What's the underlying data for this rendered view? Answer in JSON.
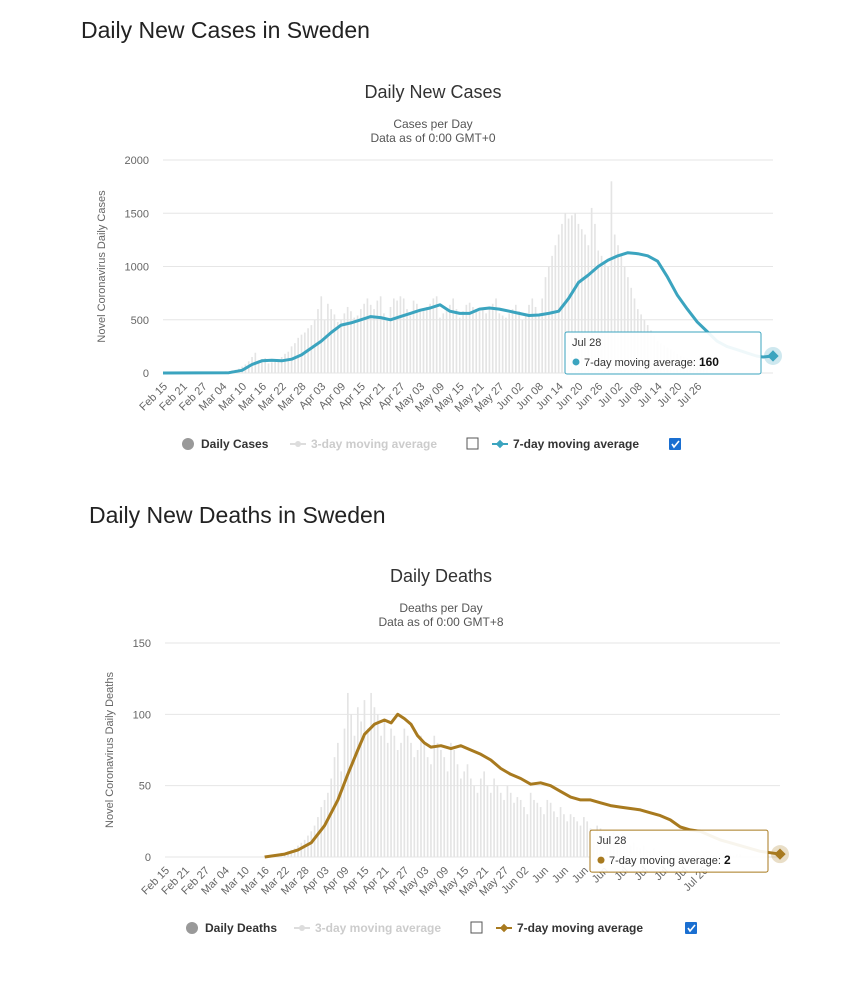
{
  "page": {
    "cases_heading": "Daily New Cases in Sweden",
    "deaths_heading": "Daily New Deaths in Sweden"
  },
  "chart_data": [
    {
      "type": "bar",
      "title": "Daily New Cases",
      "subtitle1": "Cases per Day",
      "subtitle2": "Data as of 0:00 GMT+0",
      "ylabel": "Novel Coronavirus Daily Cases",
      "ylim": [
        0,
        2000
      ],
      "yticks": [
        0,
        500,
        1000,
        1500,
        2000
      ],
      "x_range": [
        "Feb 15",
        "Jul 28"
      ],
      "xticks": [
        "Feb 15",
        "Feb 21",
        "Feb 27",
        "Mar 04",
        "Mar 10",
        "Mar 16",
        "Mar 22",
        "Mar 28",
        "Apr 03",
        "Apr 09",
        "Apr 15",
        "Apr 21",
        "Apr 27",
        "May 03",
        "May 09",
        "May 15",
        "May 21",
        "May 27",
        "Jun 02",
        "Jun 08",
        "Jun 14",
        "Jun 20",
        "Jun 26",
        "Jul 02",
        "Jul 08",
        "Jul 14",
        "Jul 20",
        "Jul 26"
      ],
      "accent": "#3ba4bf",
      "legend": {
        "daily": "Daily Cases",
        "ma3": "3-day moving average",
        "ma7": "7-day moving average",
        "ma3_checked": false,
        "ma7_checked": true
      },
      "tooltip": {
        "date": "Jul 28",
        "label": "7-day moving average:",
        "value": "160"
      },
      "series": [
        {
          "name": "7-day moving average",
          "points": [
            [
              0,
              0
            ],
            [
              10,
              1
            ],
            [
              20,
              3
            ],
            [
              24,
              25
            ],
            [
              27,
              80
            ],
            [
              30,
              115
            ],
            [
              33,
              120
            ],
            [
              36,
              115
            ],
            [
              39,
              130
            ],
            [
              42,
              170
            ],
            [
              45,
              235
            ],
            [
              48,
              300
            ],
            [
              51,
              380
            ],
            [
              54,
              450
            ],
            [
              57,
              470
            ],
            [
              60,
              500
            ],
            [
              63,
              530
            ],
            [
              66,
              520
            ],
            [
              69,
              500
            ],
            [
              72,
              530
            ],
            [
              75,
              560
            ],
            [
              78,
              590
            ],
            [
              81,
              610
            ],
            [
              84,
              640
            ],
            [
              87,
              580
            ],
            [
              90,
              560
            ],
            [
              93,
              560
            ],
            [
              96,
              600
            ],
            [
              99,
              610
            ],
            [
              102,
              600
            ],
            [
              105,
              580
            ],
            [
              108,
              560
            ],
            [
              111,
              540
            ],
            [
              114,
              545
            ],
            [
              117,
              560
            ],
            [
              120,
              580
            ],
            [
              123,
              700
            ],
            [
              126,
              850
            ],
            [
              129,
              920
            ],
            [
              132,
              1000
            ],
            [
              135,
              1060
            ],
            [
              138,
              1100
            ],
            [
              141,
              1130
            ],
            [
              144,
              1120
            ],
            [
              147,
              1100
            ],
            [
              150,
              1050
            ],
            [
              153,
              900
            ],
            [
              156,
              730
            ],
            [
              159,
              600
            ],
            [
              162,
              480
            ],
            [
              165,
              390
            ],
            [
              168,
              300
            ],
            [
              171,
              250
            ],
            [
              174,
              220
            ],
            [
              177,
              190
            ],
            [
              180,
              160
            ],
            [
              182,
              150
            ],
            [
              185,
              160
            ]
          ]
        }
      ],
      "bars_note": "daily values approximated",
      "daily_cases": [
        0,
        0,
        0,
        0,
        0,
        0,
        0,
        0,
        0,
        0,
        0,
        1,
        2,
        3,
        5,
        8,
        10,
        12,
        14,
        16,
        15,
        25,
        30,
        40,
        60,
        80,
        110,
        150,
        190,
        120,
        130,
        140,
        90,
        100,
        110,
        120,
        150,
        180,
        200,
        250,
        280,
        330,
        360,
        380,
        420,
        450,
        500,
        600,
        720,
        500,
        650,
        600,
        550,
        480,
        500,
        560,
        620,
        580,
        520,
        540,
        600,
        650,
        700,
        640,
        600,
        680,
        720,
        560,
        500,
        620,
        700,
        680,
        720,
        700,
        600,
        540,
        680,
        650,
        580,
        600,
        620,
        650,
        700,
        720,
        520,
        560,
        600,
        640,
        700,
        600,
        520,
        580,
        640,
        660,
        620,
        600,
        580,
        600,
        560,
        620,
        650,
        700,
        560,
        540,
        520,
        560,
        600,
        640,
        580,
        500,
        560,
        640,
        700,
        620,
        540,
        700,
        900,
        1000,
        1100,
        1200,
        1300,
        1400,
        1500,
        1450,
        1480,
        1500,
        1400,
        1350,
        1300,
        1200,
        1550,
        1400,
        1150,
        1100,
        1050,
        1000,
        1800,
        1300,
        1200,
        1100,
        1000,
        900,
        800,
        700,
        600,
        550,
        500,
        450,
        400,
        350,
        300,
        280,
        260,
        240,
        220,
        200,
        180,
        160,
        150,
        140,
        130,
        120,
        110,
        160,
        170,
        180
      ]
    },
    {
      "type": "bar",
      "title": "Daily Deaths",
      "subtitle1": "Deaths per Day",
      "subtitle2": "Data as of 0:00 GMT+8",
      "ylabel": "Novel Coronavirus Daily Deaths",
      "ylim": [
        0,
        150
      ],
      "yticks": [
        0,
        50,
        100,
        150
      ],
      "x_range": [
        "Feb 15",
        "Jul 28"
      ],
      "xticks": [
        "Feb 15",
        "Feb 21",
        "Feb 27",
        "Mar 04",
        "Mar 10",
        "Mar 16",
        "Mar 22",
        "Mar 28",
        "Apr 03",
        "Apr 09",
        "Apr 15",
        "Apr 21",
        "Apr 27",
        "May 03",
        "May 09",
        "May 15",
        "May 21",
        "May 27",
        "Jun 02",
        "Jun",
        "Jun",
        "Jun",
        "Jun",
        "Jul",
        "Jul",
        "Jul",
        "Jul",
        "Jul 26"
      ],
      "accent": "#a87a1f",
      "legend": {
        "daily": "Daily Deaths",
        "ma3": "3-day moving average",
        "ma7": "7-day moving average",
        "ma3_checked": false,
        "ma7_checked": true
      },
      "tooltip": {
        "date": "Jul 28",
        "label": "7-day moving average:",
        "value": "2"
      },
      "series": [
        {
          "name": "7-day moving average",
          "points": [
            [
              30,
              0
            ],
            [
              36,
              2
            ],
            [
              40,
              5
            ],
            [
              44,
              10
            ],
            [
              48,
              22
            ],
            [
              52,
              40
            ],
            [
              55,
              58
            ],
            [
              58,
              75
            ],
            [
              60,
              86
            ],
            [
              63,
              93
            ],
            [
              66,
              96
            ],
            [
              68,
              94
            ],
            [
              70,
              100
            ],
            [
              72,
              97
            ],
            [
              74,
              93
            ],
            [
              76,
              85
            ],
            [
              78,
              80
            ],
            [
              80,
              77
            ],
            [
              83,
              78
            ],
            [
              86,
              76
            ],
            [
              89,
              78
            ],
            [
              92,
              75
            ],
            [
              95,
              72
            ],
            [
              98,
              68
            ],
            [
              101,
              62
            ],
            [
              104,
              58
            ],
            [
              107,
              55
            ],
            [
              110,
              51
            ],
            [
              113,
              52
            ],
            [
              116,
              50
            ],
            [
              119,
              46
            ],
            [
              122,
              42
            ],
            [
              125,
              40
            ],
            [
              128,
              40
            ],
            [
              131,
              38
            ],
            [
              134,
              36
            ],
            [
              137,
              35
            ],
            [
              140,
              34
            ],
            [
              143,
              33
            ],
            [
              146,
              31
            ],
            [
              149,
              29
            ],
            [
              152,
              26
            ],
            [
              155,
              21
            ],
            [
              158,
              19
            ],
            [
              161,
              18
            ],
            [
              164,
              15
            ],
            [
              167,
              12
            ],
            [
              170,
              10
            ],
            [
              173,
              8
            ],
            [
              176,
              6
            ],
            [
              179,
              4
            ],
            [
              182,
              3
            ],
            [
              185,
              2
            ]
          ]
        }
      ],
      "daily_deaths": [
        0,
        0,
        0,
        0,
        0,
        0,
        0,
        0,
        0,
        0,
        0,
        0,
        0,
        0,
        0,
        0,
        0,
        0,
        0,
        0,
        0,
        0,
        0,
        0,
        0,
        0,
        0,
        0,
        0,
        0,
        1,
        0,
        1,
        2,
        1,
        3,
        2,
        4,
        5,
        6,
        8,
        10,
        12,
        15,
        18,
        22,
        28,
        35,
        40,
        45,
        55,
        70,
        80,
        60,
        90,
        115,
        100,
        85,
        105,
        95,
        110,
        90,
        115,
        105,
        100,
        85,
        95,
        80,
        90,
        85,
        75,
        80,
        90,
        85,
        80,
        70,
        75,
        85,
        80,
        70,
        65,
        85,
        80,
        75,
        70,
        60,
        80,
        75,
        65,
        55,
        60,
        65,
        55,
        50,
        45,
        55,
        60,
        50,
        45,
        55,
        50,
        45,
        40,
        50,
        45,
        38,
        42,
        40,
        35,
        30,
        45,
        40,
        38,
        35,
        30,
        40,
        38,
        32,
        28,
        35,
        30,
        25,
        30,
        28,
        25,
        22,
        28,
        25,
        20,
        15,
        22,
        20,
        18,
        15,
        12,
        18,
        14,
        10,
        12,
        10,
        8,
        10,
        7,
        6,
        8,
        5,
        4,
        6,
        3,
        4,
        3,
        2,
        3,
        2,
        1,
        2,
        3,
        2,
        1,
        1,
        2,
        1,
        2,
        1,
        2,
        1,
        1,
        2,
        3,
        2,
        2,
        1,
        2,
        2
      ]
    }
  ]
}
